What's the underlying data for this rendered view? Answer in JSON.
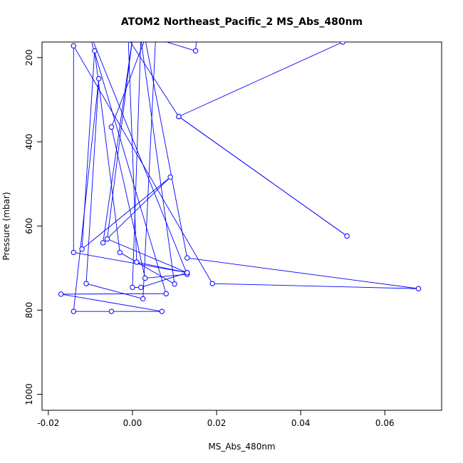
{
  "chart_data": {
    "type": "line",
    "title": "ATOM2 Northeast_Pacific_2 MS_Abs_480nm",
    "xlabel": "MS_Abs_480nm",
    "ylabel": "Pressure (mbar)",
    "xlim": [
      -0.0215,
      0.0735
    ],
    "ylim": [
      1038,
      163
    ],
    "y_reversed": true,
    "grid": false,
    "x_ticks": [
      {
        "value": -0.02,
        "label": "-0.02"
      },
      {
        "value": 0.0,
        "label": "0.00"
      },
      {
        "value": 0.02,
        "label": "0.02"
      },
      {
        "value": 0.04,
        "label": "0.04"
      },
      {
        "value": 0.06,
        "label": "0.06"
      }
    ],
    "y_ticks": [
      {
        "value": 200,
        "label": "200"
      },
      {
        "value": 400,
        "label": "400"
      },
      {
        "value": 600,
        "label": "600"
      },
      {
        "value": 800,
        "label": "800"
      },
      {
        "value": 1000,
        "label": "1000"
      }
    ],
    "series": [
      {
        "color": "#0000ff",
        "marker": "open-circle",
        "points": [
          {
            "x": 0.0155,
            "y": 120
          },
          {
            "x": 0.015,
            "y": 184
          },
          {
            "x": 0.0055,
            "y": 155
          },
          {
            "x": 0.0025,
            "y": 773
          },
          {
            "x": -0.011,
            "y": 737
          },
          {
            "x": -0.008,
            "y": 250
          },
          {
            "x": -0.014,
            "y": 803
          },
          {
            "x": -0.005,
            "y": 803
          },
          {
            "x": 0.007,
            "y": 803
          },
          {
            "x": -0.017,
            "y": 762
          },
          {
            "x": 0.008,
            "y": 761
          },
          {
            "x": -0.011,
            "y": 120
          },
          {
            "x": 0.013,
            "y": 715
          },
          {
            "x": 0.003,
            "y": 724
          },
          {
            "x": -0.005,
            "y": 365
          },
          {
            "x": 0.003,
            "y": 155
          },
          {
            "x": 0.013,
            "y": 676
          },
          {
            "x": 0.068,
            "y": 749
          },
          {
            "x": 0.019,
            "y": 737
          },
          {
            "x": -0.014,
            "y": 172
          },
          {
            "x": -0.014,
            "y": 663
          },
          {
            "x": 0.013,
            "y": 711
          },
          {
            "x": -0.006,
            "y": 631
          },
          {
            "x": 0.0,
            "y": 155
          },
          {
            "x": -0.007,
            "y": 640
          },
          {
            "x": 0.009,
            "y": 484
          },
          {
            "x": -0.012,
            "y": 655
          },
          {
            "x": -0.009,
            "y": 184
          },
          {
            "x": -0.003,
            "y": 663
          },
          {
            "x": 0.01,
            "y": 738
          },
          {
            "x": 0.002,
            "y": 155
          },
          {
            "x": 0.0,
            "y": 746
          },
          {
            "x": 0.002,
            "y": 746
          },
          {
            "x": 0.013,
            "y": 711
          },
          {
            "x": 0.001,
            "y": 686
          },
          {
            "x": -0.001,
            "y": 155
          },
          {
            "x": 0.011,
            "y": 340
          },
          {
            "x": 0.051,
            "y": 624
          },
          {
            "x": 0.011,
            "y": 340
          },
          {
            "x": 0.05,
            "y": 163
          }
        ]
      }
    ]
  }
}
